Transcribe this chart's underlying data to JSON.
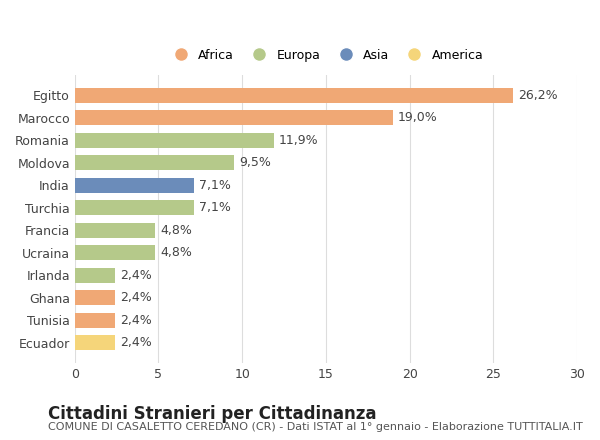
{
  "countries": [
    "Egitto",
    "Marocco",
    "Romania",
    "Moldova",
    "India",
    "Turchia",
    "Francia",
    "Ucraina",
    "Irlanda",
    "Ghana",
    "Tunisia",
    "Ecuador"
  ],
  "values": [
    26.2,
    19.0,
    11.9,
    9.5,
    7.1,
    7.1,
    4.8,
    4.8,
    2.4,
    2.4,
    2.4,
    2.4
  ],
  "labels": [
    "26,2%",
    "19,0%",
    "11,9%",
    "9,5%",
    "7,1%",
    "7,1%",
    "4,8%",
    "4,8%",
    "2,4%",
    "2,4%",
    "2,4%",
    "2,4%"
  ],
  "colors": [
    "#f0a875",
    "#f0a875",
    "#b5c98a",
    "#b5c98a",
    "#6b8cba",
    "#b5c98a",
    "#b5c98a",
    "#b5c98a",
    "#b5c98a",
    "#f0a875",
    "#f0a875",
    "#f5d57a"
  ],
  "legend_labels": [
    "Africa",
    "Europa",
    "Asia",
    "America"
  ],
  "legend_colors": [
    "#f0a875",
    "#b5c98a",
    "#6b8cba",
    "#f5d57a"
  ],
  "title": "Cittadini Stranieri per Cittadinanza",
  "subtitle": "COMUNE DI CASALETTO CEREDANO (CR) - Dati ISTAT al 1° gennaio - Elaborazione TUTTITALIA.IT",
  "xlim": [
    0,
    30
  ],
  "xticks": [
    0,
    5,
    10,
    15,
    20,
    25,
    30
  ],
  "background_color": "#ffffff",
  "grid_color": "#dddddd",
  "bar_height": 0.65,
  "label_fontsize": 9,
  "tick_fontsize": 9,
  "title_fontsize": 12,
  "subtitle_fontsize": 8
}
